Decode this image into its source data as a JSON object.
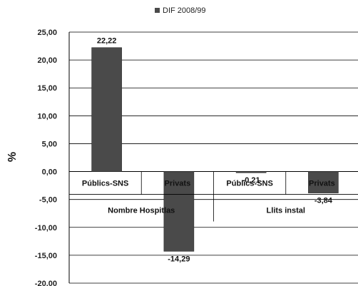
{
  "chart_data": {
    "type": "bar",
    "title": "",
    "ylabel": "%",
    "ylim": [
      -20,
      25
    ],
    "yticks": [
      "25,00",
      "20,00",
      "15,00",
      "10,00",
      "5,00",
      "0,00",
      "-5,00",
      "-10,00",
      "-15,00",
      "-20,00"
    ],
    "ytick_values": [
      25,
      20,
      15,
      10,
      5,
      0,
      -5,
      -10,
      -15,
      -20
    ],
    "grid": true,
    "legend_position": "top",
    "series": [
      {
        "name": "DIF 2008/99",
        "color": "#4a4a4a",
        "values": [
          22.22,
          -14.29,
          -0.21,
          -3.84
        ]
      }
    ],
    "categories": [
      "Públics-SNS",
      "Privats",
      "Públics-SNS",
      "Privats"
    ],
    "groups": [
      {
        "label": "Nombre Hospitlas",
        "span": 2
      },
      {
        "label": "Llits instal",
        "span": 2
      }
    ],
    "data_labels": [
      "22,22",
      "-14,29",
      "-0,21",
      "-3,84"
    ]
  }
}
